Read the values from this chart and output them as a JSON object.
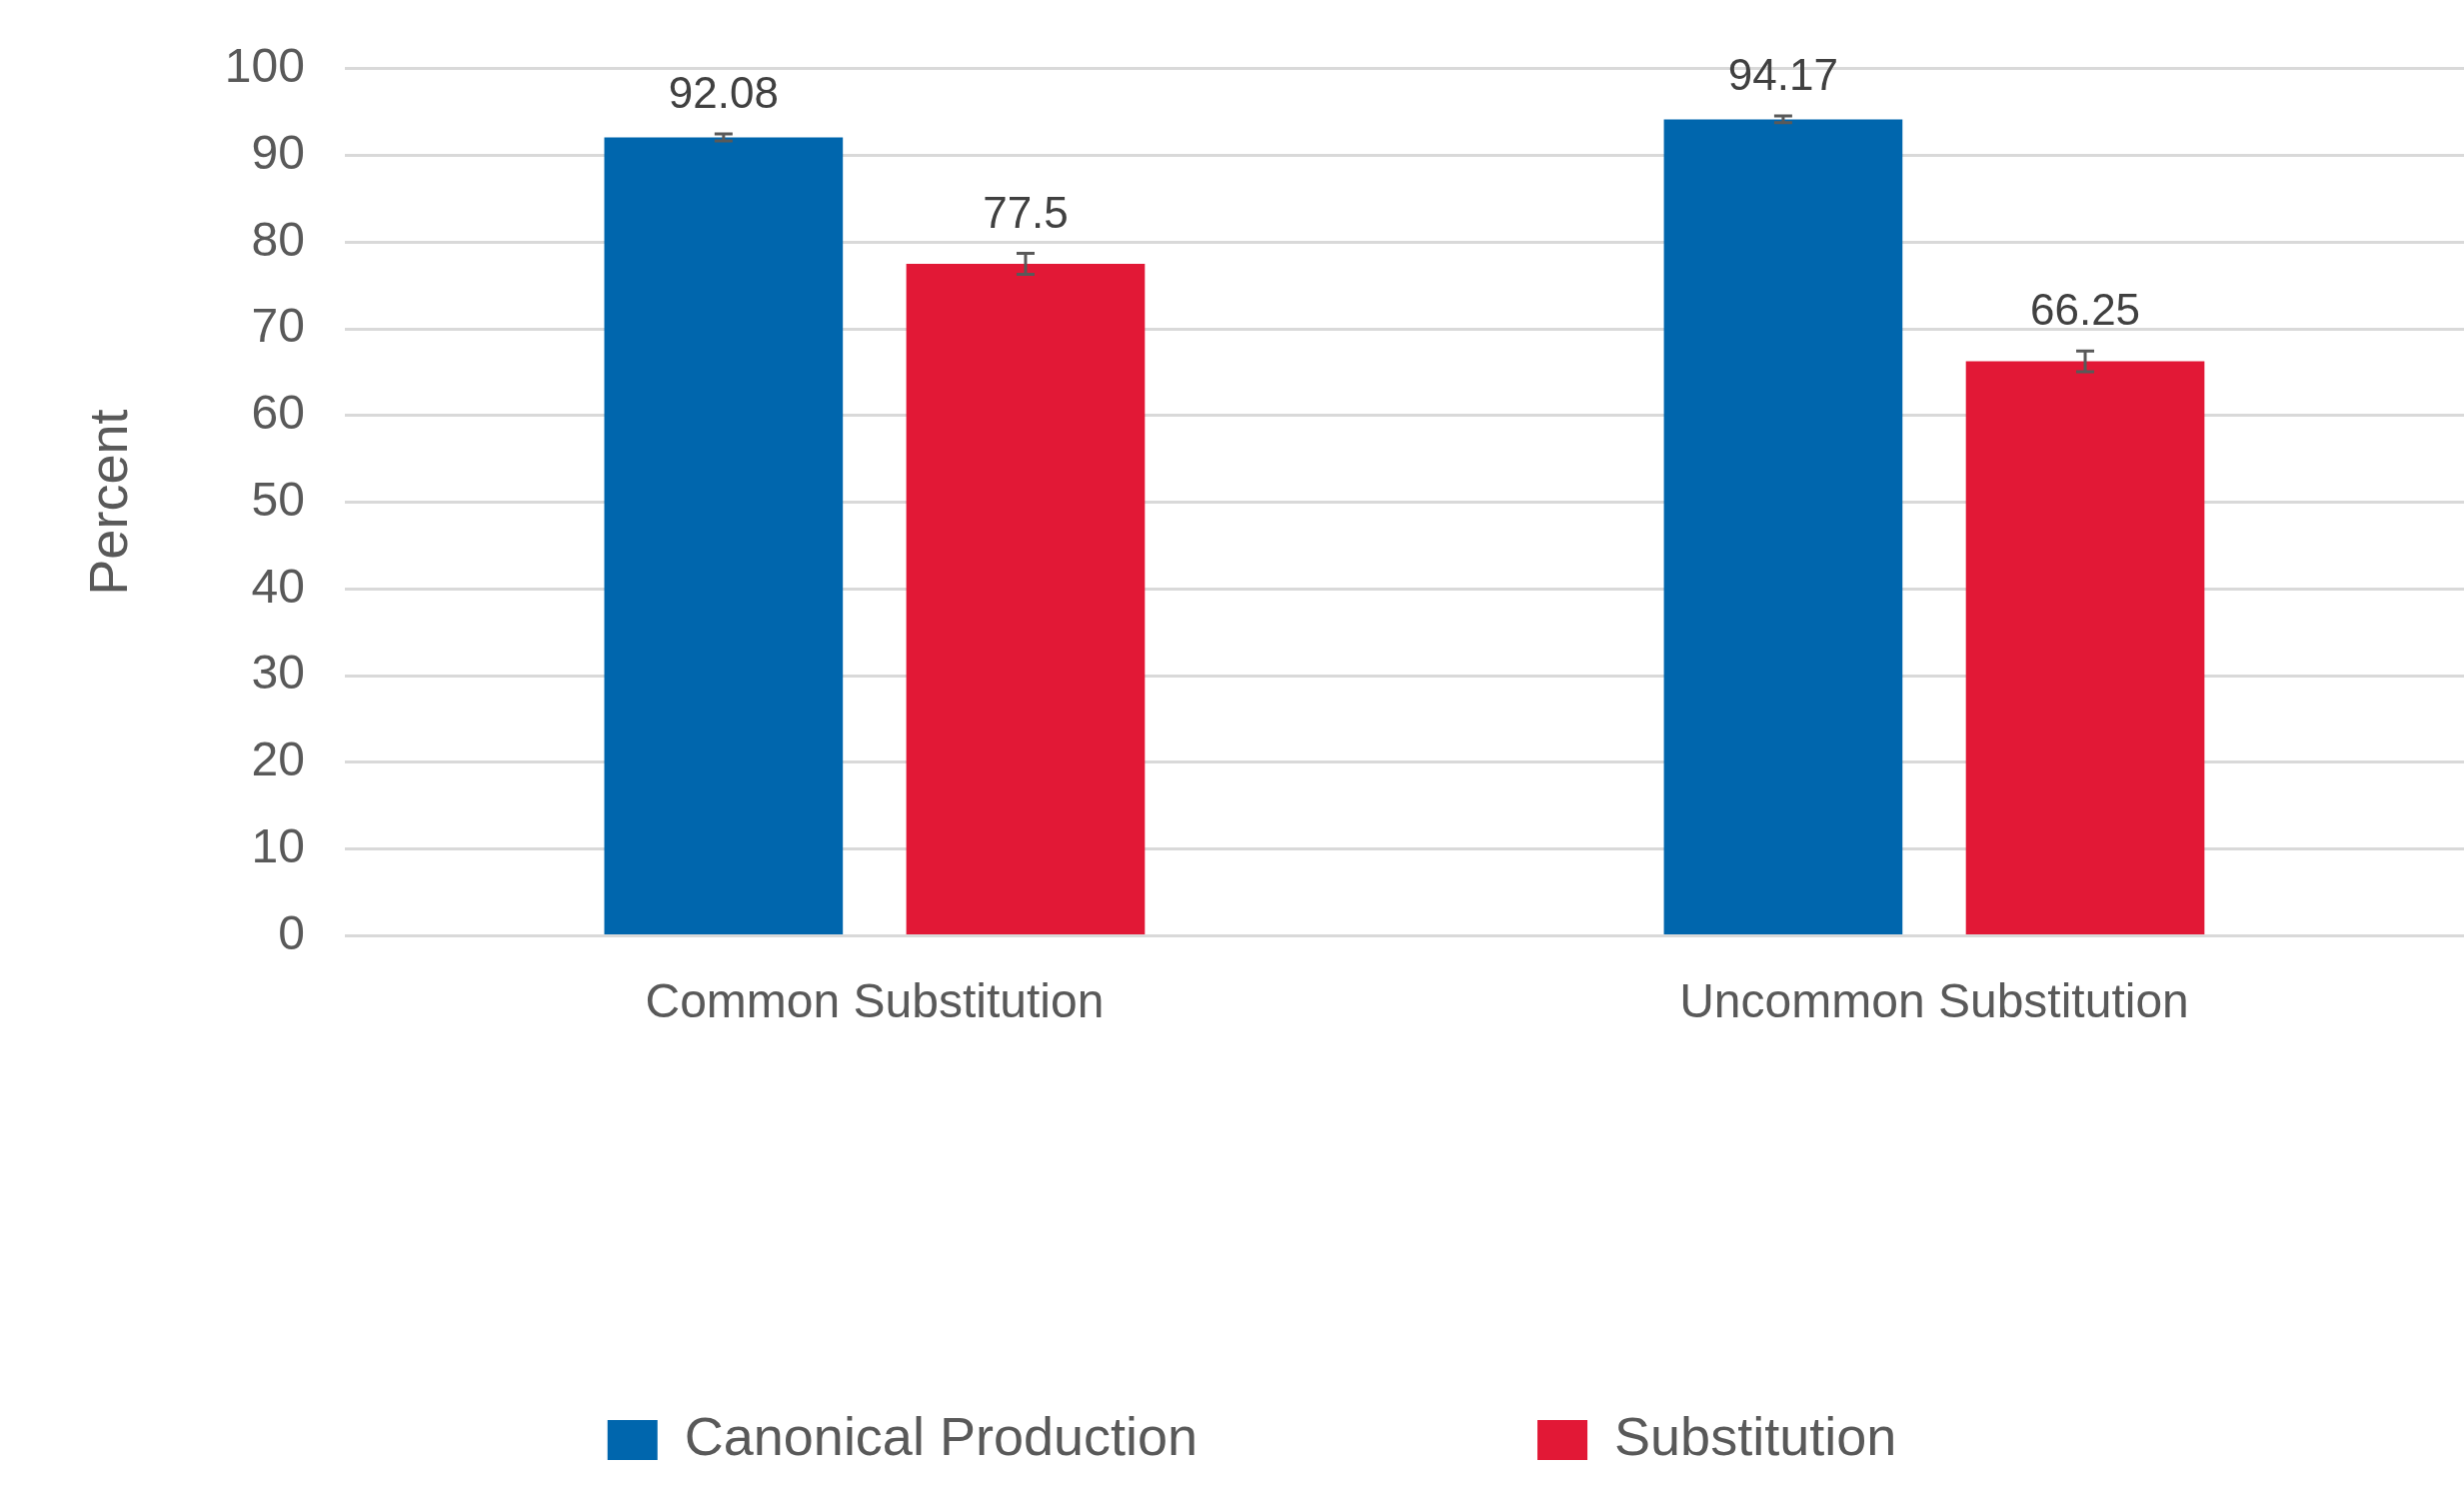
{
  "chart_data": {
    "type": "bar",
    "ylabel": "Percent",
    "categories": [
      "Common Substitution",
      "Uncommon Substitution"
    ],
    "series": [
      {
        "name": "Canonical Production",
        "color": "#0066ad",
        "values": [
          92.08,
          94.17
        ],
        "errors": [
          0.4,
          0.4
        ]
      },
      {
        "name": "Substitution",
        "color": "#e21836",
        "values": [
          77.5,
          66.25
        ],
        "errors": [
          1.2,
          1.2
        ]
      }
    ],
    "ylim": [
      0,
      100
    ],
    "yticks": [
      0,
      10,
      20,
      30,
      40,
      50,
      60,
      70,
      80,
      90,
      100
    ],
    "grid": "y",
    "legend": "bottom",
    "data_labels": true
  }
}
